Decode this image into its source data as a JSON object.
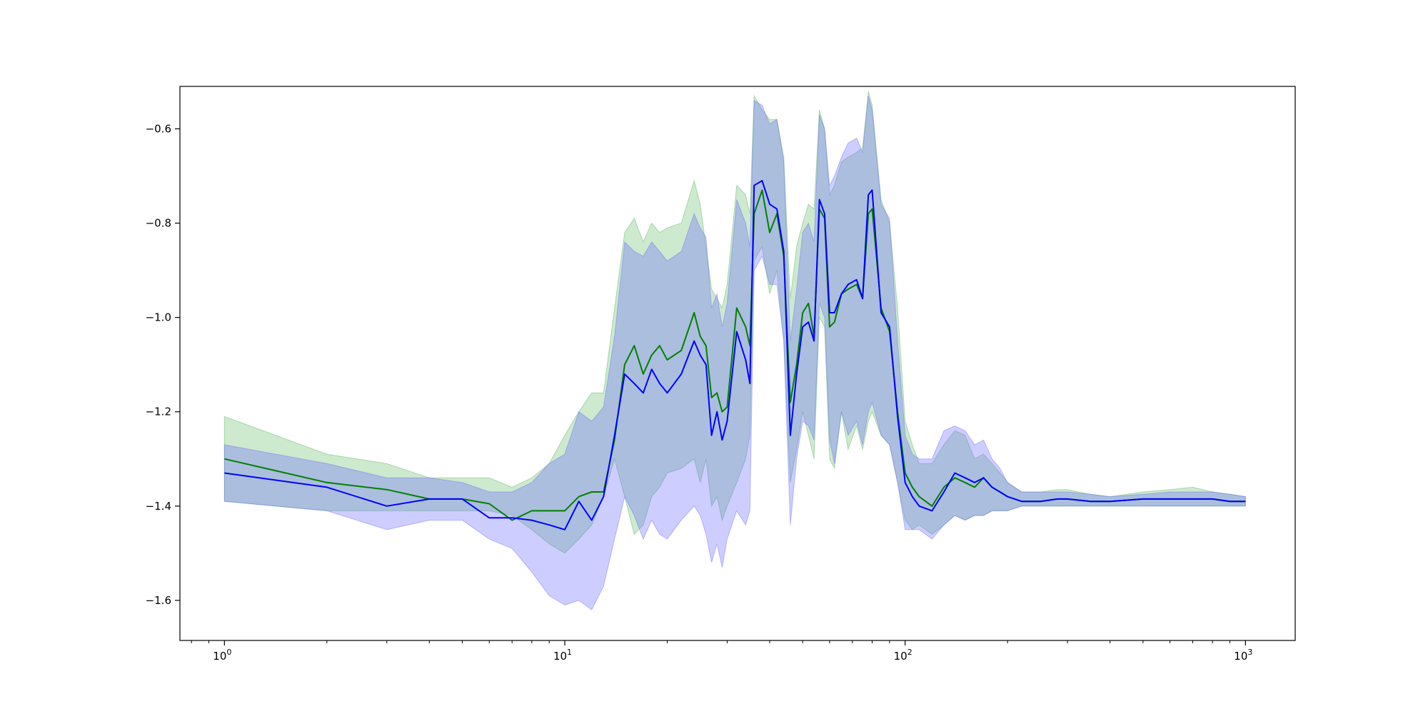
{
  "chart_data": {
    "type": "line",
    "title": "",
    "xlabel": "",
    "ylabel": "",
    "xscale": "log",
    "xlim": [
      0.74,
      1400
    ],
    "ylim": [
      -1.685,
      -0.51
    ],
    "grid": false,
    "legend": "none",
    "x_ticks": [
      {
        "value": 1,
        "base": "10",
        "exp": "0"
      },
      {
        "value": 10,
        "base": "10",
        "exp": "1"
      },
      {
        "value": 100,
        "base": "10",
        "exp": "2"
      },
      {
        "value": 1000,
        "base": "10",
        "exp": "3"
      }
    ],
    "y_ticks": [
      {
        "value": -0.6,
        "label": "−0.6"
      },
      {
        "value": -0.8,
        "label": "−0.8"
      },
      {
        "value": -1.0,
        "label": "−1.0"
      },
      {
        "value": -1.2,
        "label": "−1.2"
      },
      {
        "value": -1.4,
        "label": "−1.4"
      },
      {
        "value": -1.6,
        "label": "−1.6"
      }
    ],
    "series": [
      {
        "color": "#008000",
        "band_color": "#4caf50",
        "band_opacity": 0.28,
        "x": [
          1,
          2,
          3,
          4,
          5,
          6,
          7,
          8,
          9,
          10,
          11,
          12,
          13,
          14,
          15,
          16,
          17,
          18,
          19,
          20,
          22,
          24,
          25,
          26,
          27,
          28,
          29,
          30,
          32,
          34,
          35,
          36,
          38,
          40,
          42,
          44,
          46,
          48,
          50,
          52,
          54,
          56,
          58,
          60,
          62,
          65,
          68,
          72,
          75,
          78,
          80,
          85,
          90,
          95,
          100,
          105,
          110,
          120,
          130,
          140,
          150,
          160,
          170,
          180,
          190,
          200,
          220,
          250,
          280,
          300,
          350,
          400,
          500,
          600,
          700,
          800,
          900,
          1000
        ],
        "y": [
          -1.3,
          -1.35,
          -1.365,
          -1.385,
          -1.385,
          -1.395,
          -1.43,
          -1.41,
          -1.41,
          -1.41,
          -1.38,
          -1.37,
          -1.37,
          -1.26,
          -1.1,
          -1.06,
          -1.12,
          -1.08,
          -1.06,
          -1.09,
          -1.07,
          -0.99,
          -1.04,
          -1.06,
          -1.17,
          -1.16,
          -1.2,
          -1.19,
          -0.98,
          -1.02,
          -1.06,
          -0.78,
          -0.73,
          -0.82,
          -0.78,
          -0.87,
          -1.18,
          -1.1,
          -0.99,
          -0.97,
          -1.04,
          -0.77,
          -0.79,
          -1.02,
          -1.01,
          -0.95,
          -0.94,
          -0.93,
          -0.96,
          -0.78,
          -0.77,
          -0.98,
          -1.03,
          -1.2,
          -1.33,
          -1.36,
          -1.38,
          -1.4,
          -1.36,
          -1.34,
          -1.35,
          -1.36,
          -1.34,
          -1.36,
          -1.37,
          -1.38,
          -1.39,
          -1.39,
          -1.385,
          -1.385,
          -1.39,
          -1.39,
          -1.385,
          -1.385,
          -1.385,
          -1.385,
          -1.39,
          -1.39
        ],
        "lower": [
          -1.39,
          -1.41,
          -1.41,
          -1.41,
          -1.41,
          -1.41,
          -1.42,
          -1.45,
          -1.48,
          -1.5,
          -1.47,
          -1.44,
          -1.38,
          -1.3,
          -1.38,
          -1.46,
          -1.44,
          -1.38,
          -1.36,
          -1.33,
          -1.32,
          -1.3,
          -1.35,
          -1.3,
          -1.4,
          -1.38,
          -1.43,
          -1.4,
          -1.35,
          -1.3,
          -1.25,
          -0.88,
          -0.85,
          -0.95,
          -0.9,
          -1.05,
          -1.35,
          -1.28,
          -1.2,
          -1.25,
          -1.3,
          -1.0,
          -1.02,
          -1.3,
          -1.32,
          -1.2,
          -1.28,
          -1.23,
          -1.28,
          -1.22,
          -1.2,
          -1.25,
          -1.27,
          -1.35,
          -1.43,
          -1.45,
          -1.44,
          -1.46,
          -1.44,
          -1.42,
          -1.43,
          -1.42,
          -1.42,
          -1.41,
          -1.41,
          -1.41,
          -1.4,
          -1.4,
          -1.4,
          -1.4,
          -1.4,
          -1.4,
          -1.4,
          -1.4,
          -1.4,
          -1.4,
          -1.4,
          -1.4
        ],
        "upper": [
          -1.21,
          -1.29,
          -1.31,
          -1.34,
          -1.34,
          -1.34,
          -1.36,
          -1.34,
          -1.31,
          -1.25,
          -1.2,
          -1.16,
          -1.16,
          -0.98,
          -0.82,
          -0.79,
          -0.84,
          -0.8,
          -0.82,
          -0.81,
          -0.8,
          -0.71,
          -0.76,
          -0.85,
          -0.94,
          -0.96,
          -0.98,
          -0.93,
          -0.72,
          -0.74,
          -0.78,
          -0.53,
          -0.56,
          -0.58,
          -0.58,
          -0.66,
          -0.96,
          -0.85,
          -0.8,
          -0.76,
          -0.77,
          -0.56,
          -0.6,
          -0.74,
          -0.72,
          -0.67,
          -0.66,
          -0.65,
          -0.64,
          -0.52,
          -0.55,
          -0.75,
          -0.8,
          -0.98,
          -1.22,
          -1.27,
          -1.31,
          -1.31,
          -1.27,
          -1.24,
          -1.25,
          -1.3,
          -1.29,
          -1.31,
          -1.33,
          -1.35,
          -1.37,
          -1.37,
          -1.365,
          -1.365,
          -1.375,
          -1.38,
          -1.37,
          -1.365,
          -1.36,
          -1.37,
          -1.375,
          -1.38
        ]
      },
      {
        "color": "#0000ff",
        "band_color": "#6666ff",
        "band_opacity": 0.33,
        "x": [
          1,
          2,
          3,
          4,
          5,
          6,
          7,
          8,
          9,
          10,
          11,
          12,
          13,
          14,
          15,
          16,
          17,
          18,
          19,
          20,
          22,
          24,
          25,
          26,
          27,
          28,
          29,
          30,
          32,
          34,
          35,
          36,
          38,
          40,
          42,
          44,
          46,
          48,
          50,
          52,
          54,
          56,
          58,
          60,
          62,
          65,
          68,
          72,
          75,
          78,
          80,
          85,
          90,
          95,
          100,
          105,
          110,
          120,
          130,
          140,
          150,
          160,
          170,
          180,
          190,
          200,
          220,
          250,
          280,
          300,
          350,
          400,
          500,
          600,
          700,
          800,
          900,
          1000
        ],
        "y": [
          -1.33,
          -1.36,
          -1.4,
          -1.385,
          -1.385,
          -1.425,
          -1.425,
          -1.43,
          -1.44,
          -1.45,
          -1.39,
          -1.43,
          -1.38,
          -1.25,
          -1.12,
          -1.14,
          -1.16,
          -1.11,
          -1.14,
          -1.16,
          -1.12,
          -1.05,
          -1.08,
          -1.1,
          -1.25,
          -1.2,
          -1.26,
          -1.22,
          -1.03,
          -1.09,
          -1.14,
          -0.72,
          -0.71,
          -0.76,
          -0.77,
          -0.86,
          -1.25,
          -1.12,
          -1.02,
          -1.01,
          -1.05,
          -0.75,
          -0.78,
          -0.99,
          -0.99,
          -0.95,
          -0.93,
          -0.92,
          -0.96,
          -0.74,
          -0.73,
          -0.99,
          -1.02,
          -1.21,
          -1.35,
          -1.38,
          -1.4,
          -1.41,
          -1.37,
          -1.33,
          -1.34,
          -1.35,
          -1.34,
          -1.36,
          -1.37,
          -1.38,
          -1.39,
          -1.39,
          -1.385,
          -1.385,
          -1.39,
          -1.39,
          -1.385,
          -1.385,
          -1.385,
          -1.385,
          -1.39,
          -1.39
        ],
        "lower": [
          -1.39,
          -1.41,
          -1.45,
          -1.43,
          -1.43,
          -1.47,
          -1.49,
          -1.54,
          -1.59,
          -1.61,
          -1.6,
          -1.62,
          -1.57,
          -1.47,
          -1.38,
          -1.42,
          -1.47,
          -1.43,
          -1.46,
          -1.47,
          -1.43,
          -1.4,
          -1.42,
          -1.46,
          -1.52,
          -1.48,
          -1.53,
          -1.47,
          -1.41,
          -1.44,
          -1.41,
          -0.9,
          -0.87,
          -0.93,
          -0.93,
          -1.05,
          -1.44,
          -1.3,
          -1.22,
          -1.23,
          -1.26,
          -0.97,
          -1.0,
          -1.26,
          -1.31,
          -1.2,
          -1.25,
          -1.22,
          -1.27,
          -1.2,
          -1.18,
          -1.25,
          -1.27,
          -1.35,
          -1.45,
          -1.45,
          -1.45,
          -1.47,
          -1.44,
          -1.42,
          -1.43,
          -1.42,
          -1.42,
          -1.41,
          -1.41,
          -1.41,
          -1.4,
          -1.4,
          -1.4,
          -1.4,
          -1.4,
          -1.4,
          -1.4,
          -1.4,
          -1.4,
          -1.4,
          -1.4,
          -1.4
        ],
        "upper": [
          -1.27,
          -1.31,
          -1.34,
          -1.34,
          -1.35,
          -1.37,
          -1.37,
          -1.35,
          -1.31,
          -1.29,
          -1.2,
          -1.22,
          -1.19,
          -1.04,
          -0.84,
          -0.86,
          -0.87,
          -0.84,
          -0.86,
          -0.88,
          -0.86,
          -0.78,
          -0.81,
          -0.83,
          -0.98,
          -0.95,
          -1.02,
          -0.97,
          -0.75,
          -0.8,
          -0.85,
          -0.54,
          -0.55,
          -0.59,
          -0.58,
          -0.67,
          -1.05,
          -0.94,
          -0.82,
          -0.8,
          -0.84,
          -0.57,
          -0.6,
          -0.72,
          -0.7,
          -0.66,
          -0.63,
          -0.62,
          -0.65,
          -0.53,
          -0.56,
          -0.76,
          -0.79,
          -1.05,
          -1.25,
          -1.29,
          -1.3,
          -1.3,
          -1.24,
          -1.23,
          -1.24,
          -1.27,
          -1.26,
          -1.3,
          -1.32,
          -1.35,
          -1.37,
          -1.37,
          -1.37,
          -1.37,
          -1.375,
          -1.38,
          -1.375,
          -1.37,
          -1.37,
          -1.37,
          -1.375,
          -1.38
        ]
      }
    ]
  }
}
